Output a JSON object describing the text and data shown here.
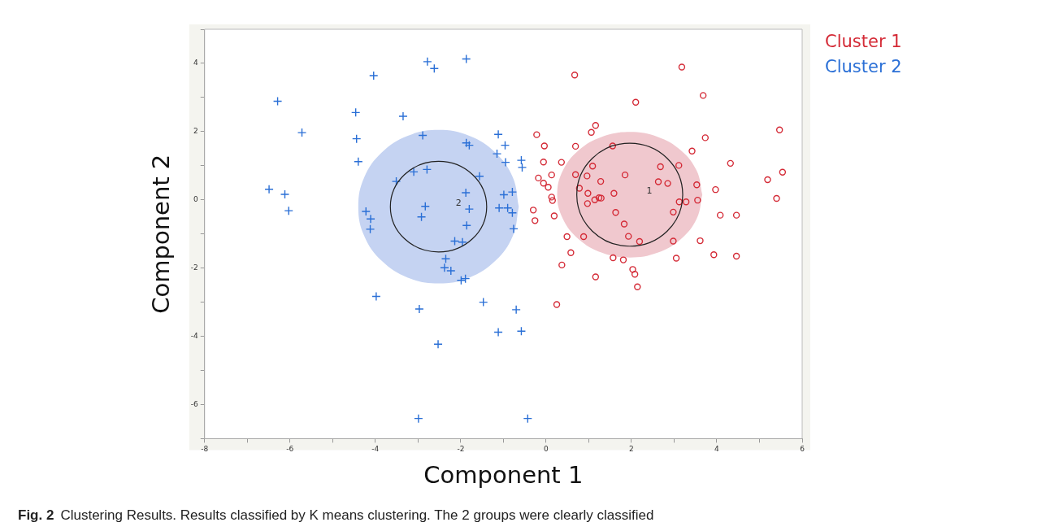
{
  "chart_data": {
    "type": "scatter",
    "xlabel": "Component 1",
    "ylabel": "Component 2",
    "xlim": [
      -8,
      6
    ],
    "ylim": [
      -7,
      5
    ],
    "xticks": [
      -8,
      {
        "value": -7,
        "label": null
      },
      -6,
      {
        "value": -5,
        "label": null
      },
      -4,
      {
        "value": -3,
        "label": null
      },
      -2,
      {
        "value": -1,
        "label": null
      },
      0,
      {
        "value": 1,
        "label": null
      },
      2,
      {
        "value": 3,
        "label": null
      },
      4,
      {
        "value": 5,
        "label": null
      },
      6
    ],
    "yticks": [
      {
        "value": -7,
        "label": null
      },
      -6,
      {
        "value": -5,
        "label": null
      },
      -4,
      {
        "value": -3,
        "label": null
      },
      -2,
      {
        "value": -1,
        "label": null
      },
      0,
      {
        "value": 1,
        "label": null
      },
      2,
      {
        "value": 3,
        "label": null
      },
      4,
      {
        "value": 5,
        "label": null
      }
    ],
    "grid": false,
    "legend": "top right",
    "annotations": [
      "Fig. 2",
      "Clustering Results. Results classified by K means clustering. The 2 groups were clearly classified"
    ],
    "series": [
      {
        "type": "area",
        "name": "2",
        "color": "#c5d3f2",
        "x": [
          -0.64,
          -0.78,
          -1.19,
          -1.8,
          -2.52,
          -3.24,
          -3.85,
          -4.26,
          -4.4,
          -4.26,
          -3.85,
          -3.24,
          -2.52,
          -1.8,
          -1.19,
          -0.78,
          -0.64
        ],
        "values": [
          -0.2,
          0.66,
          1.39,
          1.88,
          2.05,
          1.88,
          1.39,
          0.66,
          -0.2,
          -1.06,
          -1.79,
          -2.28,
          -2.45,
          -2.28,
          -1.79,
          -1.06,
          -0.2
        ]
      },
      {
        "type": "area",
        "name": "1",
        "color": "#f0c8ce",
        "x": [
          3.66,
          3.53,
          3.16,
          2.61,
          1.96,
          1.31,
          0.76,
          0.39,
          0.26,
          0.39,
          0.76,
          1.31,
          1.96,
          2.61,
          3.16,
          3.53,
          3.66
        ],
        "values": [
          0.15,
          0.85,
          1.45,
          1.85,
          1.99,
          1.85,
          1.45,
          0.85,
          0.15,
          -0.55,
          -1.15,
          -1.55,
          -1.69,
          -1.55,
          -1.15,
          -0.55,
          0.15
        ]
      },
      {
        "name": "Cluster 1",
        "color": "#d42a36",
        "marker": "circle",
        "x": [
          3.18,
          0.67,
          3.68,
          2.1,
          1.16,
          1.06,
          5.47,
          -0.22,
          3.73,
          -0.04,
          0.69,
          1.56,
          3.42,
          -0.06,
          0.36,
          4.32,
          0.13,
          -0.18,
          -0.06,
          0.05,
          0.69,
          0.96,
          1.09,
          1.28,
          0.78,
          1.85,
          2.68,
          3.11,
          2.63,
          2.85,
          3.53,
          5.19,
          5.54,
          3.97,
          0.98,
          1.59,
          0.13,
          0.15,
          1.24,
          1.29,
          1.14,
          0.97,
          3.12,
          3.28,
          3.55,
          5.4,
          -0.3,
          -0.26,
          0.19,
          1.63,
          2.98,
          4.08,
          4.46,
          1.83,
          0.49,
          0.88,
          1.93,
          2.19,
          2.98,
          3.61,
          0.58,
          1.57,
          1.81,
          3.05,
          3.93,
          4.46,
          0.37,
          2.03,
          2.08,
          1.16,
          2.14,
          0.25
        ],
        "values": [
          3.89,
          3.66,
          3.06,
          2.86,
          2.18,
          1.98,
          2.05,
          1.91,
          1.82,
          1.58,
          1.57,
          1.58,
          1.43,
          1.11,
          1.1,
          1.07,
          0.73,
          0.64,
          0.49,
          0.37,
          0.74,
          0.7,
          0.99,
          0.54,
          0.34,
          0.73,
          0.97,
          1.01,
          0.53,
          0.48,
          0.44,
          0.59,
          0.81,
          0.3,
          0.19,
          0.19,
          0.08,
          -0.02,
          0.06,
          0.05,
          0.0,
          -0.11,
          -0.06,
          -0.06,
          -0.01,
          0.04,
          -0.3,
          -0.61,
          -0.47,
          -0.37,
          -0.36,
          -0.45,
          -0.45,
          -0.71,
          -1.08,
          -1.08,
          -1.07,
          -1.22,
          -1.21,
          -1.2,
          -1.55,
          -1.7,
          -1.76,
          -1.71,
          -1.61,
          -1.65,
          -1.91,
          -2.04,
          -2.18,
          -2.26,
          -2.55,
          -3.07
        ]
      },
      {
        "name": "Cluster 2",
        "color": "#2a6fd6",
        "marker": "cross",
        "x": [
          -6.29,
          -5.72,
          -6.49,
          -6.12,
          -6.03,
          -4.04,
          -2.78,
          -2.62,
          -1.87,
          -4.46,
          -3.35,
          -4.44,
          -4.4,
          -2.89,
          -1.12,
          -1.87,
          -1.8,
          -1.15,
          -0.96,
          -0.95,
          -0.58,
          -0.56,
          -3.51,
          -3.1,
          -2.79,
          -1.56,
          -1.88,
          -0.99,
          -0.79,
          -2.83,
          -1.8,
          -1.1,
          -0.9,
          -0.79,
          -0.76,
          -2.92,
          -1.86,
          -4.22,
          -4.11,
          -4.12,
          -2.14,
          -1.96,
          -2.35,
          -2.38,
          -2.23,
          -1.99,
          -1.89,
          -3.98,
          -2.97,
          -1.47,
          -0.7,
          -1.12,
          -0.58,
          -2.53,
          -2.99,
          -0.43
        ],
        "values": [
          2.89,
          1.97,
          0.31,
          0.16,
          -0.32,
          3.64,
          4.05,
          3.85,
          4.13,
          2.56,
          2.45,
          1.79,
          1.12,
          1.89,
          1.92,
          1.67,
          1.6,
          1.35,
          1.6,
          1.1,
          1.16,
          0.95,
          0.54,
          0.82,
          0.89,
          0.69,
          0.21,
          0.15,
          0.23,
          -0.19,
          -0.27,
          -0.24,
          -0.24,
          -0.38,
          -0.85,
          -0.5,
          -0.75,
          -0.34,
          -0.56,
          -0.86,
          -1.21,
          -1.24,
          -1.73,
          -1.99,
          -2.08,
          -2.36,
          -2.31,
          -2.83,
          -3.2,
          -3.0,
          -3.22,
          -3.88,
          -3.85,
          -4.23,
          -6.41,
          -6.41
        ]
      }
    ]
  }
}
